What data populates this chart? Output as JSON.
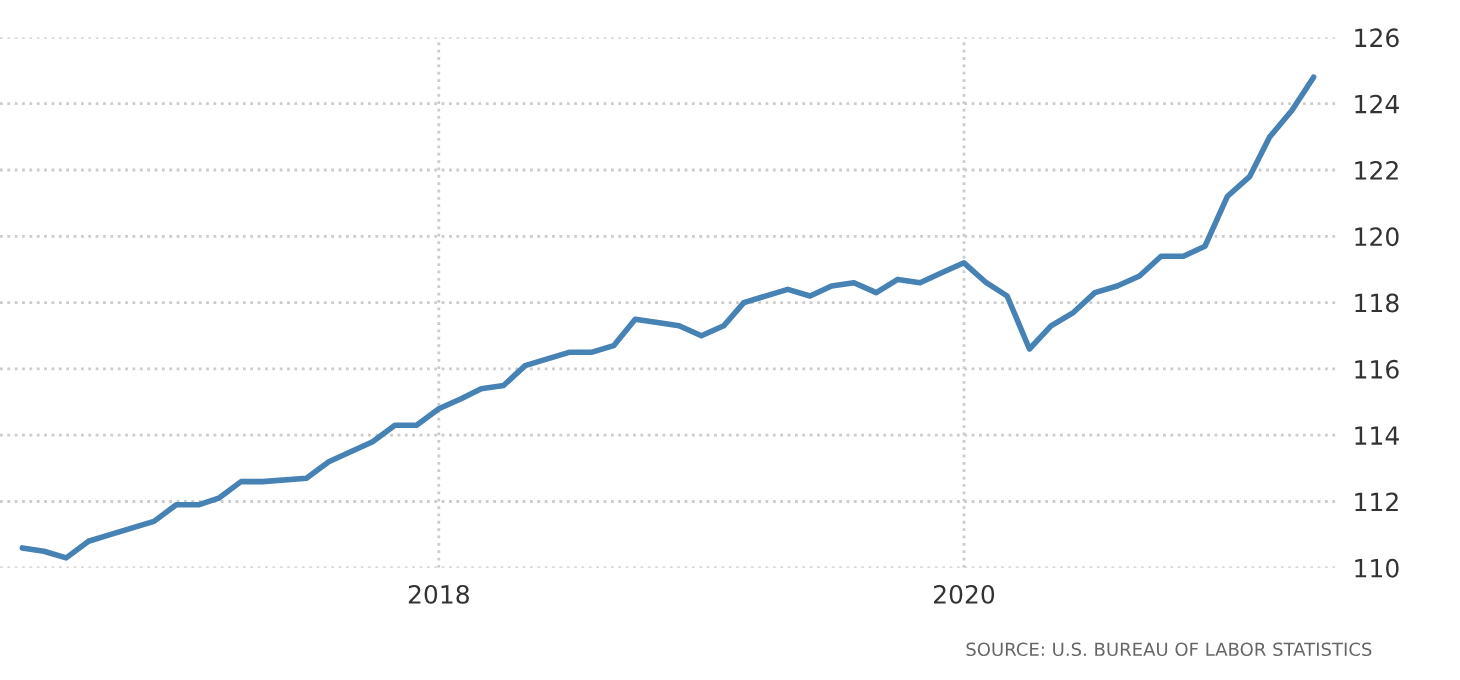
{
  "chart_data": {
    "type": "line",
    "x": [
      "2016-06",
      "2016-07",
      "2016-08",
      "2016-09",
      "2016-10",
      "2016-12",
      "2017-01",
      "2017-02",
      "2017-03",
      "2017-04",
      "2017-05",
      "2017-07",
      "2017-08",
      "2017-10",
      "2017-11",
      "2017-12",
      "2018-01",
      "2018-02",
      "2018-03",
      "2018-04",
      "2018-05",
      "2018-06",
      "2018-07",
      "2018-08",
      "2018-09",
      "2018-10",
      "2018-11",
      "2018-12",
      "2019-01",
      "2019-02",
      "2019-03",
      "2019-05",
      "2019-06",
      "2019-07",
      "2019-08",
      "2019-09",
      "2019-10",
      "2019-11",
      "2019-12",
      "2020-01",
      "2020-02",
      "2020-03",
      "2020-04",
      "2020-05",
      "2020-06",
      "2020-07",
      "2020-08",
      "2020-09",
      "2020-10",
      "2020-11",
      "2020-12",
      "2021-01",
      "2021-02",
      "2021-03",
      "2021-04",
      "2021-05"
    ],
    "series": [
      {
        "color": "#4682b4",
        "values": [
          110.6,
          110.5,
          110.3,
          110.8,
          111.0,
          111.4,
          111.9,
          111.9,
          112.1,
          112.6,
          112.6,
          112.7,
          113.2,
          113.8,
          114.3,
          114.3,
          114.8,
          115.1,
          115.4,
          115.5,
          116.1,
          116.3,
          116.5,
          116.5,
          116.7,
          117.5,
          117.4,
          117.3,
          117.0,
          117.3,
          118.0,
          118.4,
          118.2,
          118.5,
          118.6,
          118.3,
          118.7,
          118.6,
          118.9,
          119.2,
          118.6,
          118.2,
          116.6,
          117.3,
          117.7,
          118.3,
          118.5,
          118.8,
          119.4,
          119.4,
          119.7,
          121.2,
          121.8,
          123.0,
          123.8,
          124.8
        ]
      }
    ],
    "xlim": [
      "2016-05",
      "2021-06"
    ],
    "xticks": [
      {
        "value": "2018-01",
        "label": "2018"
      },
      {
        "value": "2020-01",
        "label": "2020"
      }
    ],
    "ylim": [
      110,
      126
    ],
    "yticks": [
      110,
      112,
      114,
      116,
      118,
      120,
      122,
      124,
      126
    ],
    "grid": true,
    "line_style": "solid",
    "marker": "none",
    "annotations": [
      "SOURCE: U.S. BUREAU OF LABOR STATISTICS"
    ]
  }
}
